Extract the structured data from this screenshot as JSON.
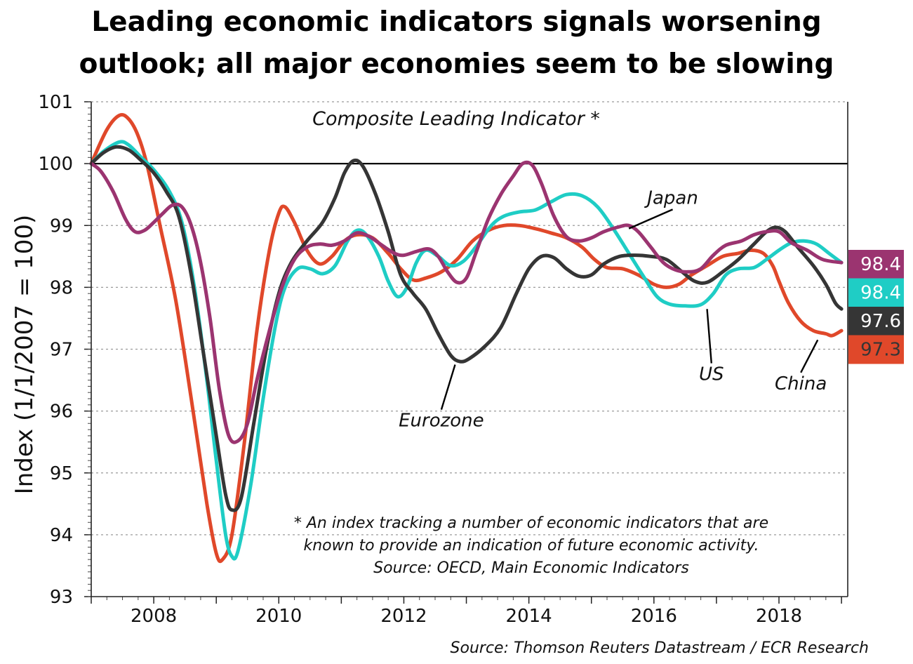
{
  "chart_data": {
    "type": "line",
    "title_line1": "Leading economic indicators signals worsening",
    "title_line2": "outlook; all major economies seem to be slowing",
    "subtitle": "Composite Leading Indicator *",
    "ylabel": "Index (1/1/2007 = 100)",
    "xlabel": "",
    "xlim": [
      2007.0,
      2019.1
    ],
    "ylim": [
      93,
      101
    ],
    "x_ticks": [
      2008,
      2010,
      2012,
      2014,
      2016,
      2018
    ],
    "x_tick_labels": [
      "2008",
      "2010",
      "2012",
      "2014",
      "2016",
      "2018"
    ],
    "y_ticks": [
      93,
      94,
      95,
      96,
      97,
      98,
      99,
      100,
      101
    ],
    "y_tick_labels": [
      "93",
      "94",
      "95",
      "96",
      "97",
      "98",
      "99",
      "100",
      "101"
    ],
    "reference_line": 100,
    "grid": "horizontal dotted",
    "footnote_lines": [
      "* An index tracking a number of economic indicators that are",
      "known to provide an indication of future economic activity.",
      "Source: OECD, Main Economic Indicators"
    ],
    "source": "Source: Thomson Reuters Datastream / ECR Research",
    "series": [
      {
        "name": "China",
        "color": "#e0482a",
        "points": [
          [
            2007.0,
            100.0
          ],
          [
            2007.25,
            100.55
          ],
          [
            2007.45,
            100.78
          ],
          [
            2007.6,
            100.72
          ],
          [
            2007.75,
            100.45
          ],
          [
            2007.9,
            99.95
          ],
          [
            2008.1,
            99.0
          ],
          [
            2008.35,
            97.8
          ],
          [
            2008.6,
            96.2
          ],
          [
            2008.85,
            94.5
          ],
          [
            2009.0,
            93.7
          ],
          [
            2009.1,
            93.6
          ],
          [
            2009.25,
            94.0
          ],
          [
            2009.45,
            95.5
          ],
          [
            2009.65,
            97.3
          ],
          [
            2009.85,
            98.6
          ],
          [
            2010.0,
            99.2
          ],
          [
            2010.1,
            99.3
          ],
          [
            2010.25,
            99.05
          ],
          [
            2010.45,
            98.6
          ],
          [
            2010.65,
            98.38
          ],
          [
            2010.85,
            98.5
          ],
          [
            2011.05,
            98.75
          ],
          [
            2011.25,
            98.85
          ],
          [
            2011.5,
            98.8
          ],
          [
            2011.75,
            98.55
          ],
          [
            2011.95,
            98.3
          ],
          [
            2012.15,
            98.12
          ],
          [
            2012.35,
            98.15
          ],
          [
            2012.6,
            98.25
          ],
          [
            2012.85,
            98.45
          ],
          [
            2013.1,
            98.75
          ],
          [
            2013.35,
            98.92
          ],
          [
            2013.6,
            99.0
          ],
          [
            2013.85,
            99.0
          ],
          [
            2014.1,
            98.95
          ],
          [
            2014.35,
            98.88
          ],
          [
            2014.6,
            98.8
          ],
          [
            2014.85,
            98.65
          ],
          [
            2015.05,
            98.45
          ],
          [
            2015.25,
            98.32
          ],
          [
            2015.5,
            98.3
          ],
          [
            2015.75,
            98.2
          ],
          [
            2016.0,
            98.05
          ],
          [
            2016.2,
            98.0
          ],
          [
            2016.4,
            98.05
          ],
          [
            2016.6,
            98.2
          ],
          [
            2016.85,
            98.35
          ],
          [
            2017.1,
            98.5
          ],
          [
            2017.35,
            98.55
          ],
          [
            2017.55,
            98.6
          ],
          [
            2017.75,
            98.55
          ],
          [
            2017.9,
            98.35
          ],
          [
            2018.0,
            98.1
          ],
          [
            2018.15,
            97.75
          ],
          [
            2018.35,
            97.45
          ],
          [
            2018.55,
            97.3
          ],
          [
            2018.75,
            97.25
          ],
          [
            2018.85,
            97.22
          ],
          [
            2019.0,
            97.3
          ]
        ]
      },
      {
        "name": "US",
        "color": "#1fcdc5",
        "points": [
          [
            2007.0,
            100.0
          ],
          [
            2007.2,
            100.2
          ],
          [
            2007.45,
            100.35
          ],
          [
            2007.6,
            100.3
          ],
          [
            2007.8,
            100.1
          ],
          [
            2008.0,
            99.9
          ],
          [
            2008.25,
            99.55
          ],
          [
            2008.45,
            99.05
          ],
          [
            2008.65,
            98.0
          ],
          [
            2008.85,
            96.5
          ],
          [
            2009.0,
            95.2
          ],
          [
            2009.15,
            94.0
          ],
          [
            2009.25,
            93.65
          ],
          [
            2009.35,
            93.75
          ],
          [
            2009.55,
            94.8
          ],
          [
            2009.75,
            96.2
          ],
          [
            2009.95,
            97.4
          ],
          [
            2010.1,
            98.0
          ],
          [
            2010.3,
            98.3
          ],
          [
            2010.5,
            98.3
          ],
          [
            2010.7,
            98.22
          ],
          [
            2010.9,
            98.35
          ],
          [
            2011.1,
            98.75
          ],
          [
            2011.25,
            98.92
          ],
          [
            2011.4,
            98.85
          ],
          [
            2011.6,
            98.5
          ],
          [
            2011.75,
            98.1
          ],
          [
            2011.9,
            97.85
          ],
          [
            2012.05,
            98.0
          ],
          [
            2012.2,
            98.4
          ],
          [
            2012.35,
            98.6
          ],
          [
            2012.55,
            98.5
          ],
          [
            2012.75,
            98.35
          ],
          [
            2012.95,
            98.42
          ],
          [
            2013.15,
            98.65
          ],
          [
            2013.4,
            99.0
          ],
          [
            2013.6,
            99.15
          ],
          [
            2013.85,
            99.22
          ],
          [
            2014.1,
            99.25
          ],
          [
            2014.35,
            99.38
          ],
          [
            2014.6,
            99.5
          ],
          [
            2014.85,
            99.48
          ],
          [
            2015.1,
            99.3
          ],
          [
            2015.35,
            98.95
          ],
          [
            2015.6,
            98.55
          ],
          [
            2015.85,
            98.15
          ],
          [
            2016.05,
            97.85
          ],
          [
            2016.25,
            97.73
          ],
          [
            2016.5,
            97.7
          ],
          [
            2016.75,
            97.72
          ],
          [
            2016.95,
            97.9
          ],
          [
            2017.15,
            98.2
          ],
          [
            2017.35,
            98.3
          ],
          [
            2017.6,
            98.32
          ],
          [
            2017.8,
            98.45
          ],
          [
            2018.0,
            98.6
          ],
          [
            2018.2,
            98.72
          ],
          [
            2018.4,
            98.75
          ],
          [
            2018.6,
            98.7
          ],
          [
            2018.8,
            98.55
          ],
          [
            2019.0,
            98.4
          ]
        ]
      },
      {
        "name": "Eurozone",
        "color": "#353535",
        "points": [
          [
            2007.0,
            100.0
          ],
          [
            2007.2,
            100.18
          ],
          [
            2007.4,
            100.27
          ],
          [
            2007.6,
            100.22
          ],
          [
            2007.8,
            100.05
          ],
          [
            2008.0,
            99.85
          ],
          [
            2008.2,
            99.55
          ],
          [
            2008.4,
            99.15
          ],
          [
            2008.6,
            98.2
          ],
          [
            2008.8,
            96.9
          ],
          [
            2009.0,
            95.6
          ],
          [
            2009.15,
            94.65
          ],
          [
            2009.25,
            94.4
          ],
          [
            2009.4,
            94.6
          ],
          [
            2009.6,
            95.8
          ],
          [
            2009.8,
            97.0
          ],
          [
            2010.0,
            97.9
          ],
          [
            2010.2,
            98.4
          ],
          [
            2010.45,
            98.75
          ],
          [
            2010.7,
            99.05
          ],
          [
            2010.9,
            99.45
          ],
          [
            2011.05,
            99.85
          ],
          [
            2011.2,
            100.05
          ],
          [
            2011.35,
            99.95
          ],
          [
            2011.55,
            99.5
          ],
          [
            2011.75,
            98.9
          ],
          [
            2011.95,
            98.2
          ],
          [
            2012.15,
            97.9
          ],
          [
            2012.35,
            97.65
          ],
          [
            2012.55,
            97.25
          ],
          [
            2012.75,
            96.9
          ],
          [
            2012.9,
            96.8
          ],
          [
            2013.05,
            96.85
          ],
          [
            2013.3,
            97.05
          ],
          [
            2013.55,
            97.35
          ],
          [
            2013.8,
            97.9
          ],
          [
            2014.0,
            98.3
          ],
          [
            2014.2,
            98.5
          ],
          [
            2014.4,
            98.48
          ],
          [
            2014.6,
            98.3
          ],
          [
            2014.8,
            98.18
          ],
          [
            2015.0,
            98.2
          ],
          [
            2015.2,
            98.38
          ],
          [
            2015.45,
            98.5
          ],
          [
            2015.7,
            98.52
          ],
          [
            2015.95,
            98.5
          ],
          [
            2016.2,
            98.45
          ],
          [
            2016.45,
            98.25
          ],
          [
            2016.65,
            98.1
          ],
          [
            2016.85,
            98.08
          ],
          [
            2017.1,
            98.25
          ],
          [
            2017.35,
            98.45
          ],
          [
            2017.6,
            98.7
          ],
          [
            2017.8,
            98.9
          ],
          [
            2017.95,
            98.97
          ],
          [
            2018.1,
            98.9
          ],
          [
            2018.3,
            98.65
          ],
          [
            2018.55,
            98.35
          ],
          [
            2018.75,
            98.05
          ],
          [
            2018.9,
            97.75
          ],
          [
            2019.0,
            97.65
          ]
        ]
      },
      {
        "name": "Japan",
        "color": "#9b3470",
        "points": [
          [
            2007.0,
            100.0
          ],
          [
            2007.15,
            99.88
          ],
          [
            2007.35,
            99.55
          ],
          [
            2007.55,
            99.1
          ],
          [
            2007.7,
            98.9
          ],
          [
            2007.85,
            98.92
          ],
          [
            2008.0,
            99.05
          ],
          [
            2008.15,
            99.2
          ],
          [
            2008.3,
            99.33
          ],
          [
            2008.45,
            99.3
          ],
          [
            2008.6,
            99.0
          ],
          [
            2008.75,
            98.4
          ],
          [
            2008.9,
            97.5
          ],
          [
            2009.05,
            96.35
          ],
          [
            2009.2,
            95.6
          ],
          [
            2009.35,
            95.52
          ],
          [
            2009.5,
            95.8
          ],
          [
            2009.65,
            96.5
          ],
          [
            2009.85,
            97.3
          ],
          [
            2010.05,
            98.0
          ],
          [
            2010.25,
            98.45
          ],
          [
            2010.45,
            98.65
          ],
          [
            2010.65,
            98.7
          ],
          [
            2010.85,
            98.68
          ],
          [
            2011.05,
            98.75
          ],
          [
            2011.25,
            98.88
          ],
          [
            2011.45,
            98.82
          ],
          [
            2011.65,
            98.68
          ],
          [
            2011.85,
            98.55
          ],
          [
            2012.0,
            98.52
          ],
          [
            2012.2,
            98.58
          ],
          [
            2012.4,
            98.62
          ],
          [
            2012.55,
            98.5
          ],
          [
            2012.7,
            98.25
          ],
          [
            2012.85,
            98.08
          ],
          [
            2013.0,
            98.15
          ],
          [
            2013.15,
            98.55
          ],
          [
            2013.35,
            99.1
          ],
          [
            2013.55,
            99.5
          ],
          [
            2013.75,
            99.8
          ],
          [
            2013.9,
            100.0
          ],
          [
            2014.05,
            99.98
          ],
          [
            2014.2,
            99.68
          ],
          [
            2014.4,
            99.15
          ],
          [
            2014.6,
            98.82
          ],
          [
            2014.8,
            98.75
          ],
          [
            2015.0,
            98.8
          ],
          [
            2015.2,
            98.9
          ],
          [
            2015.45,
            98.98
          ],
          [
            2015.6,
            99.0
          ],
          [
            2015.75,
            98.9
          ],
          [
            2015.95,
            98.65
          ],
          [
            2016.15,
            98.4
          ],
          [
            2016.35,
            98.28
          ],
          [
            2016.55,
            98.25
          ],
          [
            2016.75,
            98.3
          ],
          [
            2016.95,
            98.52
          ],
          [
            2017.15,
            98.68
          ],
          [
            2017.4,
            98.75
          ],
          [
            2017.6,
            98.85
          ],
          [
            2017.8,
            98.9
          ],
          [
            2018.0,
            98.9
          ],
          [
            2018.2,
            98.72
          ],
          [
            2018.45,
            98.6
          ],
          [
            2018.7,
            98.45
          ],
          [
            2019.0,
            98.4
          ]
        ]
      }
    ],
    "annotations": [
      {
        "text": "Japan",
        "series": "Japan",
        "anchor": [
          2015.6,
          98.95
        ],
        "label_at": [
          2016.3,
          99.35
        ]
      },
      {
        "text": "US",
        "series": "US",
        "anchor": [
          2016.85,
          97.65
        ],
        "label_at": [
          2016.92,
          96.5
        ]
      },
      {
        "text": "Eurozone",
        "series": "Eurozone",
        "anchor": [
          2012.82,
          96.75
        ],
        "label_at": [
          2012.6,
          95.75
        ]
      },
      {
        "text": "China",
        "series": "China",
        "anchor": [
          2018.62,
          97.15
        ],
        "label_at": [
          2018.35,
          96.35
        ]
      }
    ],
    "end_badges": [
      {
        "label": "98.4",
        "bg": "#9b3470",
        "fg": "#ffffff"
      },
      {
        "label": "98.4",
        "bg": "#1fcdc5",
        "fg": "#ffffff"
      },
      {
        "label": "97.6",
        "bg": "#353535",
        "fg": "#ffffff"
      },
      {
        "label": "97.3",
        "bg": "#e0482a",
        "fg": "#353535"
      }
    ]
  }
}
